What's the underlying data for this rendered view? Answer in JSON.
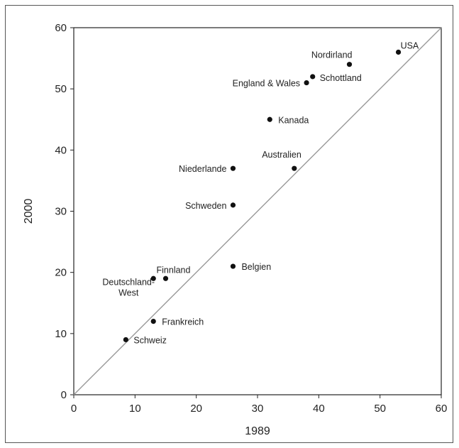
{
  "chart_data": {
    "type": "scatter",
    "xlabel": "1989",
    "ylabel": "2000",
    "xlim": [
      0,
      60
    ],
    "ylim": [
      0,
      60
    ],
    "xticks": [
      0,
      10,
      20,
      30,
      40,
      50,
      60
    ],
    "yticks": [
      0,
      10,
      20,
      30,
      40,
      50,
      60
    ],
    "reference_line": "y = x",
    "grid": false,
    "points": [
      {
        "label": "USA",
        "x": 53,
        "y": 56
      },
      {
        "label": "Nordirland",
        "x": 45,
        "y": 54
      },
      {
        "label": "Schottland",
        "x": 39,
        "y": 52
      },
      {
        "label": "England & Wales",
        "x": 38,
        "y": 51
      },
      {
        "label": "Kanada",
        "x": 32,
        "y": 45
      },
      {
        "label": "Australien",
        "x": 36,
        "y": 37
      },
      {
        "label": "Niederlande",
        "x": 26,
        "y": 37
      },
      {
        "label": "Schweden",
        "x": 26,
        "y": 31
      },
      {
        "label": "Belgien",
        "x": 26,
        "y": 21
      },
      {
        "label": "Finnland",
        "x": 15,
        "y": 19
      },
      {
        "label": "Deutschland-\nWest",
        "x": 13,
        "y": 19
      },
      {
        "label": "Frankreich",
        "x": 13,
        "y": 12
      },
      {
        "label": "Schweiz",
        "x": 8.5,
        "y": 9
      }
    ]
  }
}
